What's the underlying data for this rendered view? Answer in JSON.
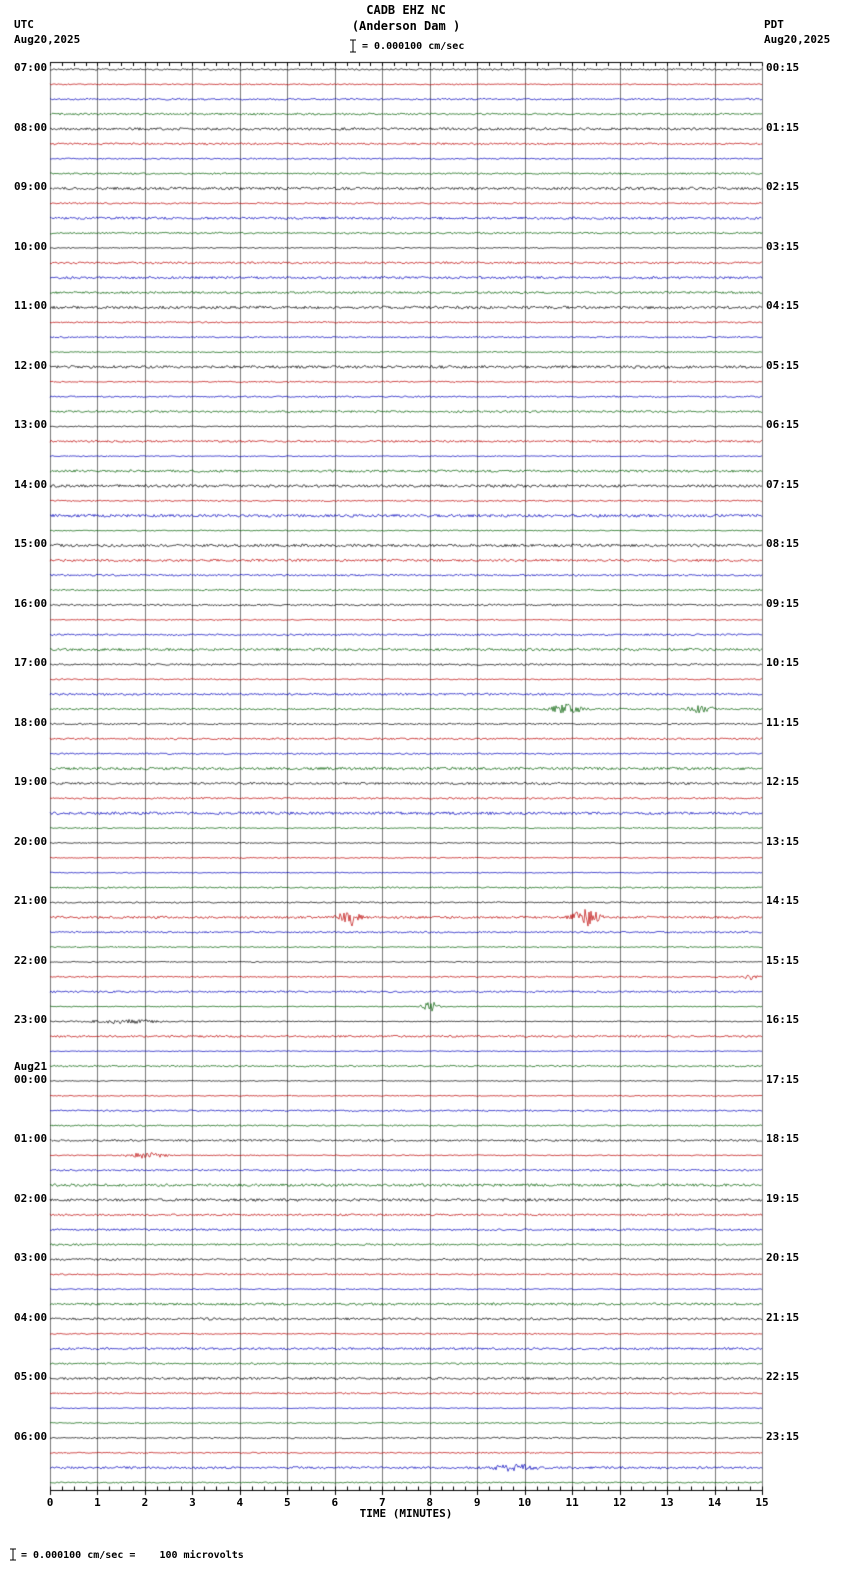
{
  "header": {
    "station_line": "CADB EHZ NC",
    "location_line": "(Anderson Dam )",
    "scale_text": "= 0.000100 cm/sec",
    "utc_label": "UTC",
    "utc_date": "Aug20,2025",
    "pdt_label": "PDT",
    "pdt_date": "Aug20,2025"
  },
  "axis": {
    "xlabel": "TIME (MINUTES)",
    "tick_labels": [
      "0",
      "1",
      "2",
      "3",
      "4",
      "5",
      "6",
      "7",
      "8",
      "9",
      "10",
      "11",
      "12",
      "13",
      "14",
      "15"
    ]
  },
  "footer": {
    "note": "= 0.000100 cm/sec =    100 microvolts"
  },
  "left_labels": [
    {
      "row": 0,
      "text": "07:00"
    },
    {
      "row": 4,
      "text": "08:00"
    },
    {
      "row": 8,
      "text": "09:00"
    },
    {
      "row": 12,
      "text": "10:00"
    },
    {
      "row": 16,
      "text": "11:00"
    },
    {
      "row": 20,
      "text": "12:00"
    },
    {
      "row": 24,
      "text": "13:00"
    },
    {
      "row": 28,
      "text": "14:00"
    },
    {
      "row": 32,
      "text": "15:00"
    },
    {
      "row": 36,
      "text": "16:00"
    },
    {
      "row": 40,
      "text": "17:00"
    },
    {
      "row": 44,
      "text": "18:00"
    },
    {
      "row": 48,
      "text": "19:00"
    },
    {
      "row": 52,
      "text": "20:00"
    },
    {
      "row": 56,
      "text": "21:00"
    },
    {
      "row": 60,
      "text": "22:00"
    },
    {
      "row": 64,
      "text": "23:00"
    },
    {
      "row": 68,
      "text": "00:00",
      "date": "Aug21"
    },
    {
      "row": 72,
      "text": "01:00"
    },
    {
      "row": 76,
      "text": "02:00"
    },
    {
      "row": 80,
      "text": "03:00"
    },
    {
      "row": 84,
      "text": "04:00"
    },
    {
      "row": 88,
      "text": "05:00"
    },
    {
      "row": 92,
      "text": "06:00"
    }
  ],
  "right_labels": [
    {
      "row": 0,
      "text": "00:15"
    },
    {
      "row": 4,
      "text": "01:15"
    },
    {
      "row": 8,
      "text": "02:15"
    },
    {
      "row": 12,
      "text": "03:15"
    },
    {
      "row": 16,
      "text": "04:15"
    },
    {
      "row": 20,
      "text": "05:15"
    },
    {
      "row": 24,
      "text": "06:15"
    },
    {
      "row": 28,
      "text": "07:15"
    },
    {
      "row": 32,
      "text": "08:15"
    },
    {
      "row": 36,
      "text": "09:15"
    },
    {
      "row": 40,
      "text": "10:15"
    },
    {
      "row": 44,
      "text": "11:15"
    },
    {
      "row": 48,
      "text": "12:15"
    },
    {
      "row": 52,
      "text": "13:15"
    },
    {
      "row": 56,
      "text": "14:15"
    },
    {
      "row": 60,
      "text": "15:15"
    },
    {
      "row": 64,
      "text": "16:15"
    },
    {
      "row": 68,
      "text": "17:15"
    },
    {
      "row": 72,
      "text": "18:15"
    },
    {
      "row": 76,
      "text": "19:15"
    },
    {
      "row": 80,
      "text": "20:15"
    },
    {
      "row": 84,
      "text": "21:15"
    },
    {
      "row": 88,
      "text": "22:15"
    },
    {
      "row": 92,
      "text": "23:15"
    }
  ],
  "chart_data": {
    "type": "line",
    "title": "CADB EHZ NC (Anderson Dam) helicorder, 24h of 15-minute traces",
    "xlabel": "TIME (MINUTES)",
    "x_range": [
      0,
      15
    ],
    "x_ticks": [
      0,
      1,
      2,
      3,
      4,
      5,
      6,
      7,
      8,
      9,
      10,
      11,
      12,
      13,
      14,
      15
    ],
    "rows": 96,
    "minutes_per_row": 15,
    "start_utc": "Aug20,2025 07:00",
    "end_utc": "Aug21,2025 07:00",
    "scale": "0.000100 cm/sec = 100 microvolts",
    "colors_cycle": [
      "#000000",
      "#bb0000",
      "#0000bb",
      "#005f00"
    ],
    "grid_color": "#777777",
    "legend": "trace colors cycle black/red/blue/green every 15 minutes",
    "events": [
      {
        "row": 43,
        "utc": "17:45",
        "minute": 10.9,
        "amp": 4.5,
        "width": 0.22
      },
      {
        "row": 43,
        "utc": "17:45",
        "minute": 13.7,
        "amp": 3.5,
        "width": 0.18
      },
      {
        "row": 57,
        "utc": "21:15",
        "minute": 6.3,
        "amp": 8.5,
        "width": 0.13
      },
      {
        "row": 57,
        "utc": "21:15",
        "minute": 11.3,
        "amp": 8.0,
        "width": 0.18
      },
      {
        "row": 61,
        "utc": "22:15",
        "minute": 14.75,
        "amp": 2.5,
        "width": 0.08
      },
      {
        "row": 63,
        "utc": "22:45",
        "minute": 8.0,
        "amp": 6.0,
        "width": 0.1
      },
      {
        "row": 64,
        "utc": "23:00",
        "minute": 1.6,
        "amp": 2.0,
        "width": 0.5
      },
      {
        "row": 73,
        "utc": "01:15",
        "minute": 2.0,
        "amp": 2.5,
        "width": 0.3
      },
      {
        "row": 94,
        "utc": "06:30",
        "minute": 9.8,
        "amp": 3.0,
        "width": 0.28
      }
    ]
  }
}
